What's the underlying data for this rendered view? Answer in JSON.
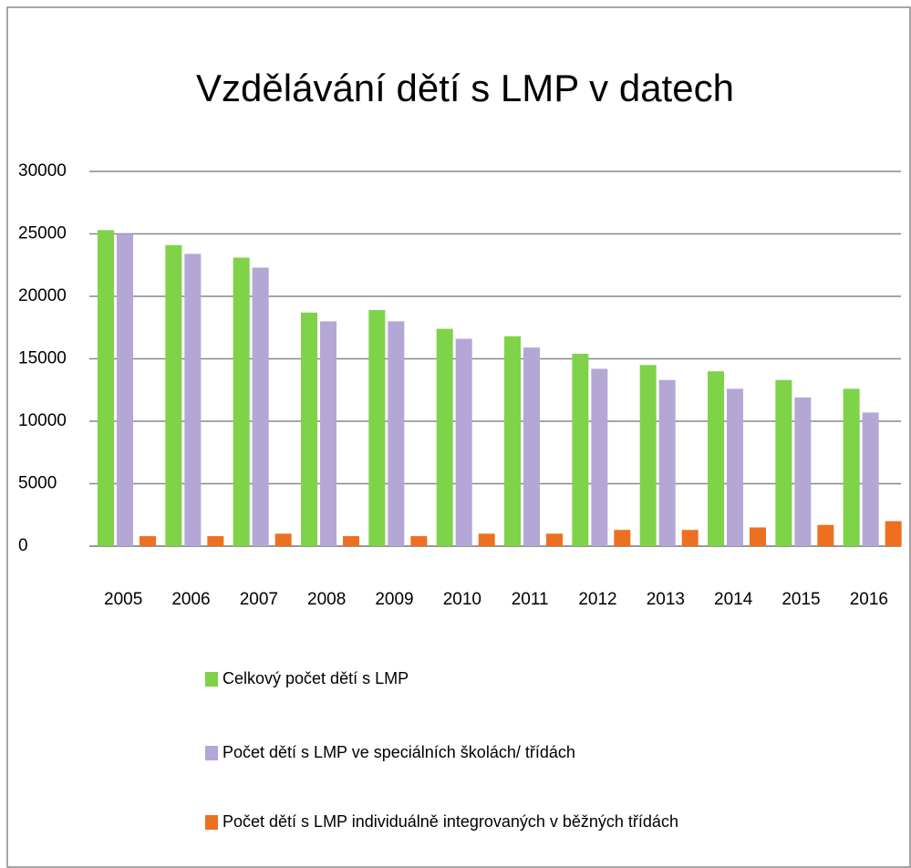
{
  "chart_data": {
    "type": "bar",
    "title": "Vzdělávání dětí s LMP v datech",
    "categories": [
      "2005",
      "2006",
      "2007",
      "2008",
      "2009",
      "2010",
      "2011",
      "2012",
      "2013",
      "2014",
      "2015",
      "2016"
    ],
    "series": [
      {
        "name": "Celkový počet dětí s LMP",
        "color": "#7ed348",
        "values": [
          25300,
          24100,
          23100,
          18700,
          18900,
          17400,
          16800,
          15400,
          14500,
          14000,
          13300,
          12600
        ]
      },
      {
        "name": "Počet dětí s LMP ve speciálních školách/ třídách",
        "color": "#b4a7d6",
        "values": [
          25000,
          23400,
          22300,
          18000,
          18000,
          16600,
          15900,
          14200,
          13300,
          12600,
          11900,
          10700
        ]
      },
      {
        "name": "Počet dětí s LMP individuálně integrovaných v běžných třídách",
        "color": "#ed7020",
        "values": [
          800,
          800,
          1000,
          800,
          800,
          1000,
          1000,
          1300,
          1300,
          1500,
          1700,
          2000
        ]
      }
    ],
    "ylim": [
      0,
      30000
    ],
    "yticks": [
      0,
      5000,
      10000,
      15000,
      20000,
      25000,
      30000
    ],
    "grid": true
  }
}
